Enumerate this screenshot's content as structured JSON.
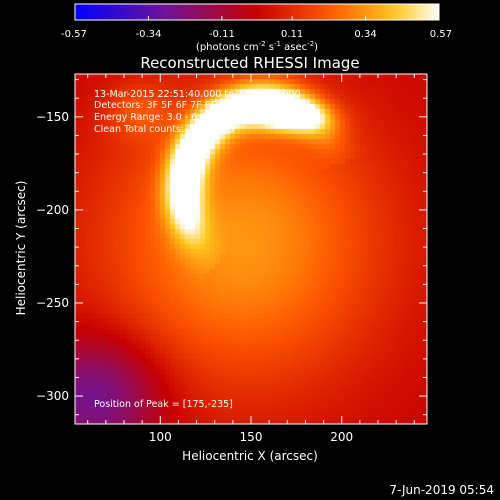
{
  "colorbar": {
    "ticks": [
      "-0.57",
      "-0.34",
      "-0.11",
      "0.11",
      "0.34",
      "0.57"
    ],
    "tick_values": [
      -0.57,
      -0.34,
      -0.11,
      0.11,
      0.34,
      0.57
    ],
    "range": [
      -0.57,
      0.57
    ],
    "units_text": "(photons cm",
    "units_exp1": "-2",
    "units_mid": " s",
    "units_exp2": "-1",
    "units_mid2": " asec",
    "units_exp3": "-2",
    "units_end": ")"
  },
  "chart_data": {
    "type": "heatmap",
    "title": "Reconstructed RHESSI Image",
    "xlabel": "Heliocentric X (arcsec)",
    "ylabel": "Heliocentric Y (arcsec)",
    "xlim": [
      53,
      247
    ],
    "ylim": [
      -315,
      -127
    ],
    "x_ticks": [
      100,
      150,
      200
    ],
    "y_ticks": [
      -150,
      -200,
      -250,
      -300
    ],
    "annotations": [
      "13-Mar-2015 22:51:40.000 to 22:58:44.000",
      "Detectors: 3F 5F 6F 7F 8F 9F, Att 0",
      "Energy Range: 3.0 - 6.0 keV",
      "Clean     Total counts: 1.65E+05"
    ],
    "peak_text": "Position of Peak = [175,-235]",
    "peak": [
      175,
      -235
    ],
    "value_range": [
      -0.57,
      0.57
    ],
    "colormap": "rhessi-hot",
    "sources": [
      {
        "kind": "arc",
        "cx": 158,
        "cy": -190,
        "rx": 45,
        "ry": 48,
        "a0": 125,
        "a1": 340,
        "width": 8,
        "amp": 0.62
      },
      {
        "kind": "blob",
        "cx": 170,
        "cy": -150,
        "sx": 15,
        "sy": 6,
        "amp": 0.36
      },
      {
        "kind": "blob",
        "cx": 145,
        "cy": -218,
        "sx": 55,
        "sy": 55,
        "amp": 0.34
      },
      {
        "kind": "blob",
        "cx": 88,
        "cy": -147,
        "sx": 12,
        "sy": 10,
        "amp": 0.14
      },
      {
        "kind": "blob",
        "cx": 65,
        "cy": -300,
        "sx": 25,
        "sy": 22,
        "amp": -0.3
      }
    ]
  },
  "footer": {
    "date": "7-Jun-2019 05:54"
  }
}
